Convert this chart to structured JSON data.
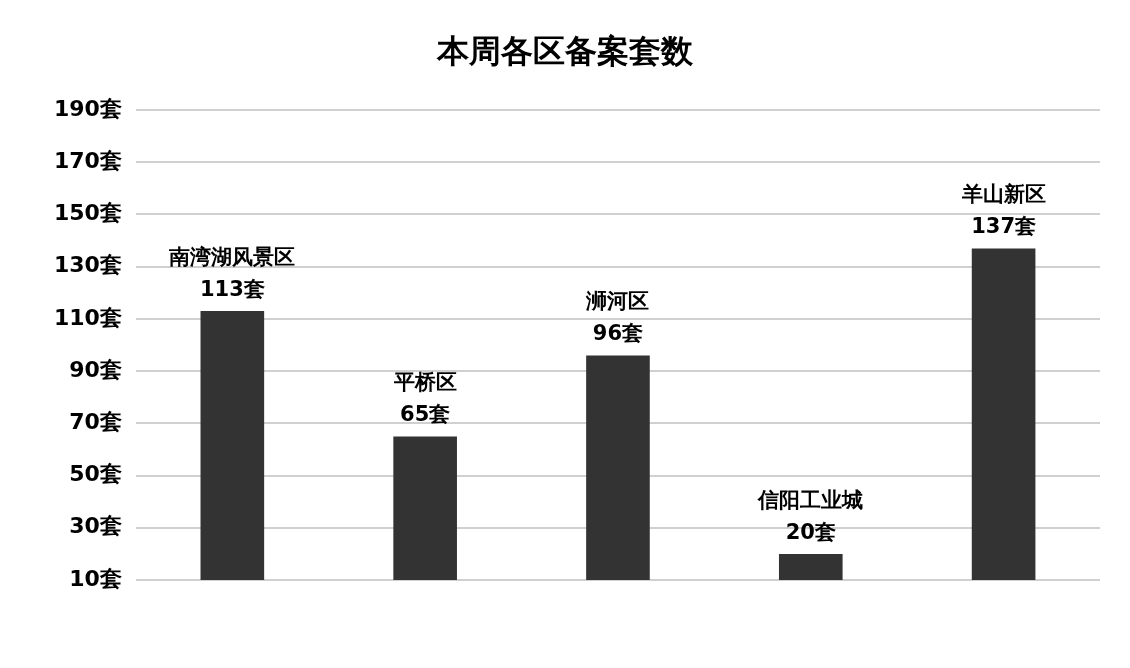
{
  "chart_data": {
    "type": "bar",
    "title": "本周各区备案套数",
    "categories": [
      "南湾湖风景区",
      "平桥区",
      "浉河区",
      "信阳工业城",
      "羊山新区"
    ],
    "values": [
      113,
      65,
      96,
      20,
      137
    ],
    "color": "#333333",
    "value_labels": [
      "113套",
      "65套",
      "96套",
      "20套",
      "137套"
    ],
    "ylim": [
      10,
      190
    ],
    "yticks": [
      {
        "value": 10,
        "label": "10套"
      },
      {
        "value": 30,
        "label": "30套"
      },
      {
        "value": 50,
        "label": "50套"
      },
      {
        "value": 70,
        "label": "70套"
      },
      {
        "value": 90,
        "label": "90套"
      },
      {
        "value": 110,
        "label": "110套"
      },
      {
        "value": 130,
        "label": "130套"
      },
      {
        "value": 150,
        "label": "150套"
      },
      {
        "value": 170,
        "label": "170套"
      },
      {
        "value": 190,
        "label": "190套"
      }
    ],
    "grid": "y",
    "tick_labels": "y",
    "legend": false
  }
}
